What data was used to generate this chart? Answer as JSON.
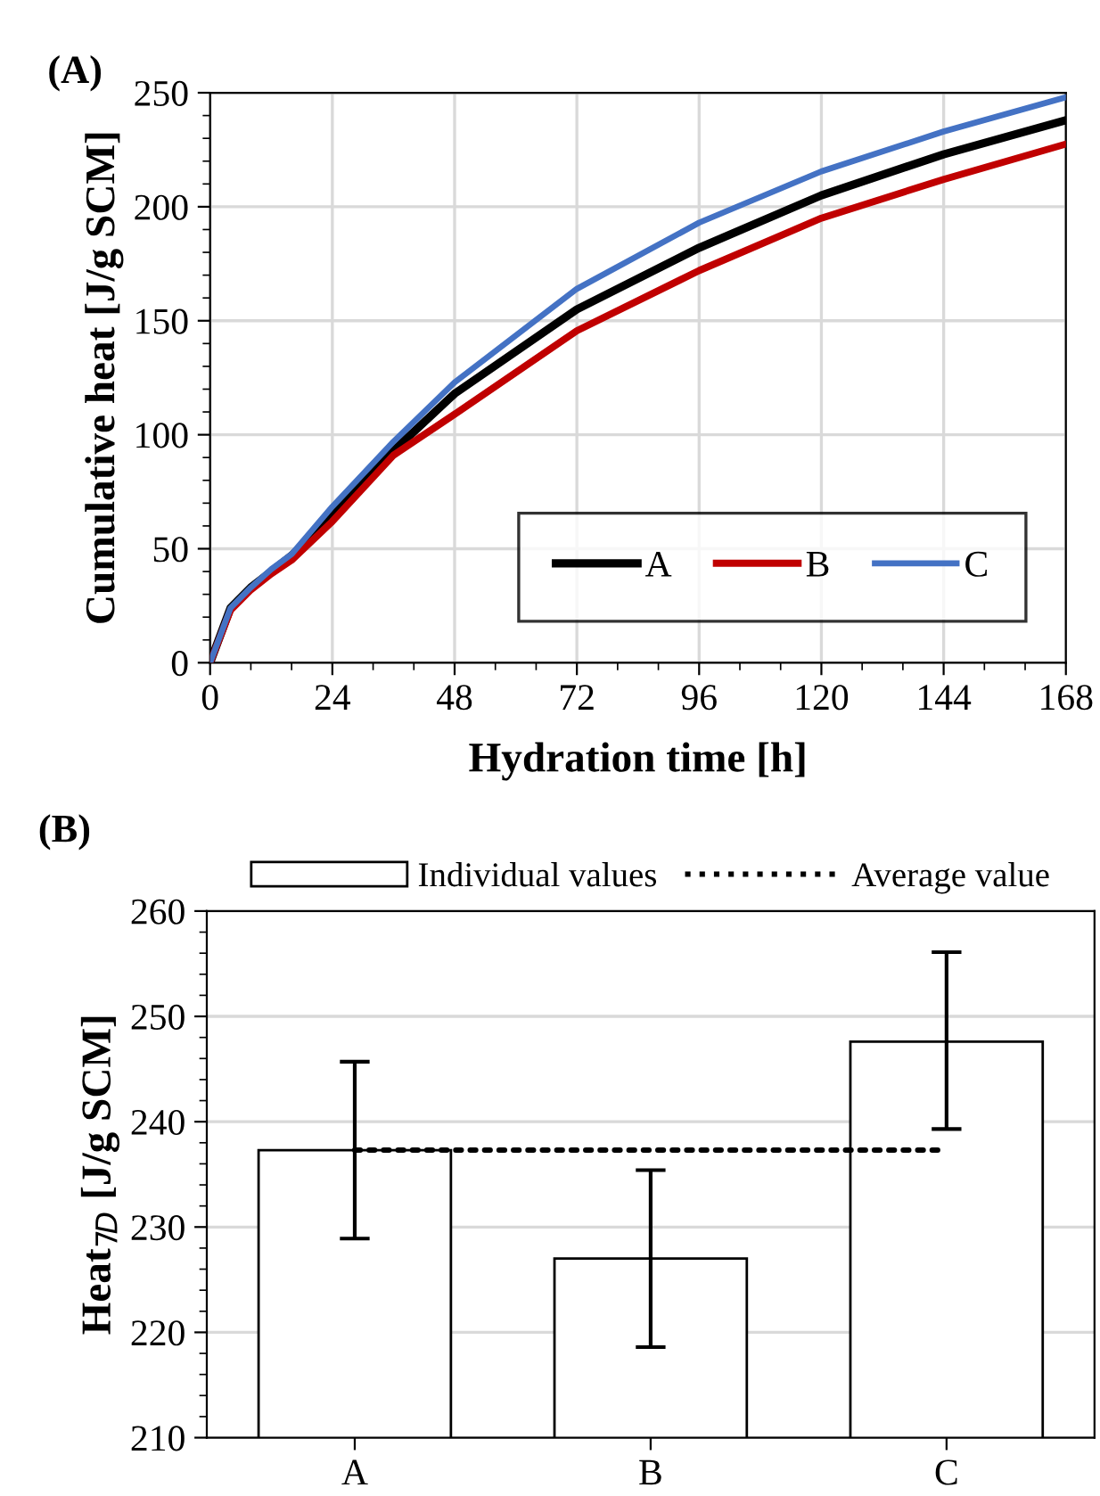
{
  "chart_data": [
    {
      "type": "line",
      "title": "(A)",
      "xlabel": "Hydration time [h]",
      "ylabel": "Cumulative heat [J/g SCM]",
      "x": [
        0,
        4,
        8,
        12,
        16,
        24,
        36,
        48,
        72,
        96,
        120,
        144,
        168
      ],
      "series": [
        {
          "name": "A",
          "color": "#000000",
          "values": [
            0,
            24,
            33,
            40,
            47,
            64.6,
            93,
            118,
            155,
            182,
            205,
            223,
            238
          ]
        },
        {
          "name": "B",
          "color": "#c00000",
          "values": [
            0,
            23,
            32,
            39,
            45,
            62,
            91,
            109,
            145.6,
            172,
            195,
            212,
            227.5
          ]
        },
        {
          "name": "C",
          "color": "#4472c4",
          "values": [
            0,
            24,
            33,
            41,
            47.6,
            68.5,
            97,
            123,
            164,
            193,
            215.5,
            233,
            248
          ]
        }
      ],
      "xlim": [
        0,
        168
      ],
      "xticks": [
        0,
        24,
        48,
        72,
        96,
        120,
        144,
        168
      ],
      "ylim": [
        0,
        250
      ],
      "yticks": [
        0,
        50,
        100,
        150,
        200,
        250
      ],
      "grid": true,
      "legend": "bottom right",
      "line_style": "solid",
      "marker": "none"
    },
    {
      "type": "bar",
      "title": "(B)",
      "ylabel": "Heat$_{7D}$ [J/g SCM]",
      "categories": [
        "A",
        "B",
        "C"
      ],
      "series": [
        {
          "name": "Individual values",
          "type": "bar",
          "color": "#ffffff",
          "values": [
            237.3,
            227,
            247.6
          ],
          "errors": [
            [
              228.9,
              245.7
            ],
            [
              218.6,
              235.4
            ],
            [
              239.3,
              256.1
            ]
          ]
        },
        {
          "name": "Average value",
          "type": "line",
          "color": "#000000",
          "line_style": "dotted",
          "values": [
            237.3,
            237.3,
            237.3
          ]
        }
      ],
      "ylim": [
        210,
        260
      ],
      "yticks": [
        210,
        220,
        230,
        240,
        250,
        260
      ],
      "grid": "y",
      "legend": "top"
    }
  ]
}
